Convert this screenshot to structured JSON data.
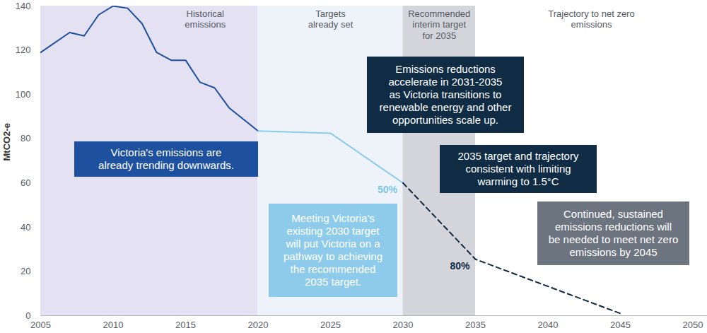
{
  "chart_data": {
    "type": "line",
    "y_label": "MtCO2-e",
    "xlim": [
      2005,
      2051
    ],
    "xticks": [
      2005,
      2010,
      2015,
      2020,
      2025,
      2030,
      2035,
      2040,
      2045,
      2050
    ],
    "ylim": [
      0,
      140
    ],
    "yticks": [
      0,
      20,
      40,
      60,
      80,
      100,
      120,
      140
    ],
    "grid": false,
    "bands": [
      {
        "label": "Historical\nemissions",
        "x": [
          2005,
          2020
        ],
        "color": "#e3e1f2"
      },
      {
        "label": "Targets\nalready set",
        "x": [
          2020,
          2030
        ],
        "color": "#edf3f9"
      },
      {
        "label": "Recommended\ninterim target\nfor 2035",
        "x": [
          2030,
          2035
        ],
        "color": "#d4d5da"
      },
      {
        "label": "Trajectory to net zero\nemissions",
        "x": [
          2035,
          2051
        ],
        "color": "#ffffff"
      }
    ],
    "series": [
      {
        "color": "#1f4e9c",
        "line_style": "solid",
        "x": [
          2005,
          2007,
          2008,
          2009,
          2010,
          2011,
          2012,
          2013,
          2014,
          2015,
          2016,
          2017,
          2018,
          2020
        ],
        "values": [
          119,
          128,
          126.5,
          136,
          140,
          139,
          132,
          119,
          115.5,
          115.5,
          105.5,
          103,
          94,
          83.5
        ]
      },
      {
        "color": "#8ccbe9",
        "line_style": "solid",
        "x": [
          2020,
          2025,
          2030
        ],
        "values": [
          83.5,
          82.5,
          60
        ]
      },
      {
        "color": "#0f2a44",
        "line_style": "dashed",
        "x": [
          2030,
          2035,
          2045
        ],
        "values": [
          60,
          25.5,
          1
        ]
      }
    ],
    "point_labels": [
      {
        "text": "50%",
        "x": 2030,
        "y": 60,
        "color": "#7fc4e6"
      },
      {
        "text": "80%",
        "x": 2035,
        "y": 25.5,
        "color": "#0f2a44"
      }
    ],
    "annotations": [
      {
        "text": "Victoria's emissions are\nalready trending downwards.",
        "color": "#1e50a0"
      },
      {
        "text": "Meeting Victoria's\nexisting 2030 target\nwill put Victoria on a\npathway to achieving\nthe recommended\n2035 target.",
        "color": "#8ecbea"
      },
      {
        "text": "Emissions reductions\naccelerate in 2031-2035\nas Victoria transitions to\nrenewable energy and other\nopportunities scale up.",
        "color": "#0f2c44"
      },
      {
        "text": "2035 target and trajectory\nconsistent with limiting\nwarming to 1.5°C",
        "color": "#0f2c44"
      },
      {
        "text": "Continued, sustained\nemissions reductions will\nbe needed to meet net zero\nemissions by 2045",
        "color": "#6c7480"
      }
    ]
  }
}
